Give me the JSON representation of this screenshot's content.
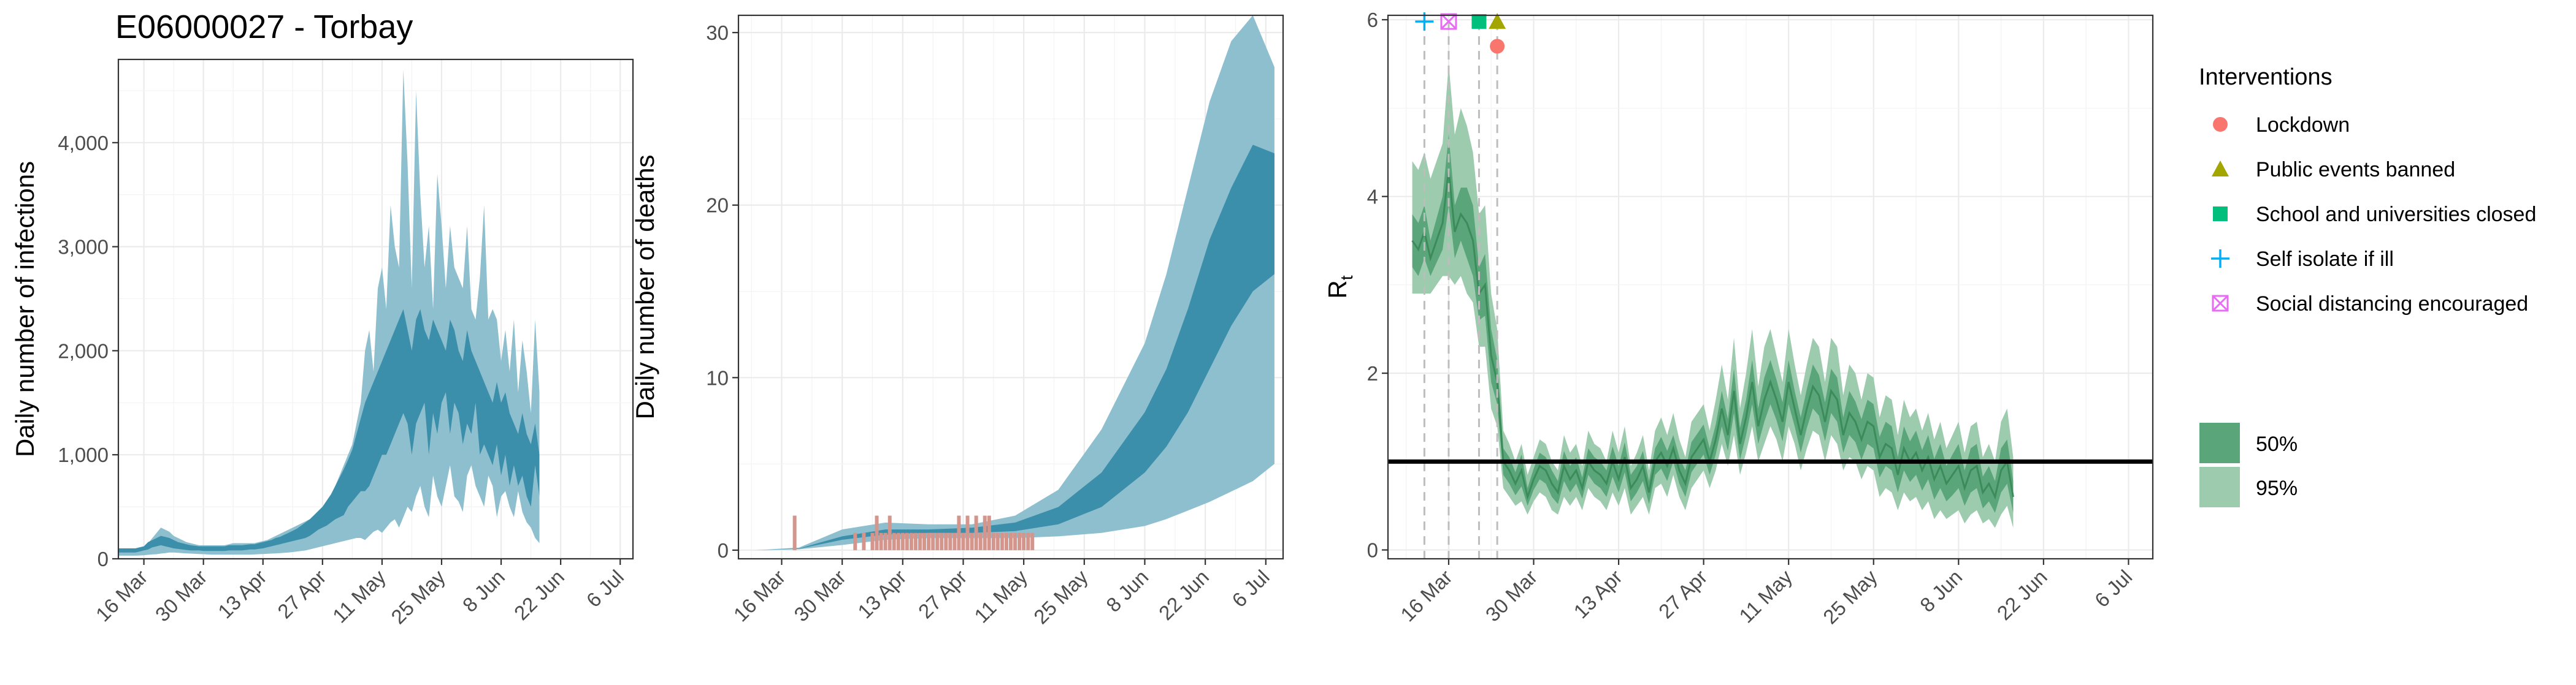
{
  "figure_title": "E06000027 - Torbay",
  "colors": {
    "infection_95": "#8ebfcf",
    "infection_50": "#3c8fab",
    "deaths_bar": "#d4958c",
    "rt_95": "#9ccbae",
    "rt_50": "#5aa57a",
    "rt_line": "#3b8c5a",
    "lockdown": "#f8766d",
    "public_events": "#a3a500",
    "school": "#00bf7d",
    "self_isolate": "#00b0f6",
    "social_distancing": "#e76bf3"
  },
  "chart_data": [
    {
      "id": "infections",
      "type": "area",
      "ylabel": "Daily number of infections",
      "ylim": [
        0,
        4800
      ],
      "yticks": [
        0,
        1000,
        2000,
        3000,
        4000
      ],
      "ytick_labels": [
        "0",
        "1,000",
        "2,000",
        "3,000",
        "4,000"
      ],
      "xlim": [
        "2020-03-10",
        "2020-07-09"
      ],
      "xticks": [
        "2020-03-16",
        "2020-03-30",
        "2020-04-13",
        "2020-04-27",
        "2020-05-11",
        "2020-05-25",
        "2020-06-08",
        "2020-06-22",
        "2020-07-06"
      ],
      "xtick_labels": [
        "16 Mar",
        "30 Mar",
        "13 Apr",
        "27 Apr",
        "11 May",
        "25 May",
        "8 Jun",
        "22 Jun",
        "6 Jul"
      ],
      "grid": true,
      "start_date": "2020-03-10",
      "band95_low": [
        30,
        30,
        30,
        30,
        30,
        32,
        34,
        38,
        42,
        44,
        50,
        55,
        60,
        60,
        58,
        55,
        52,
        50,
        48,
        46,
        44,
        42,
        40,
        40,
        40,
        40,
        40,
        40,
        40,
        40,
        40,
        40,
        42,
        44,
        46,
        48,
        50,
        52,
        55,
        58,
        60,
        65,
        70,
        75,
        80,
        90,
        100,
        110,
        120,
        130,
        140,
        150,
        160,
        170,
        180,
        190,
        200,
        200,
        180,
        220,
        260,
        280,
        250,
        300,
        350,
        380,
        300,
        400,
        500,
        450,
        600,
        700,
        500,
        400,
        800,
        600,
        500,
        700,
        900,
        600,
        550,
        450,
        800,
        900,
        700,
        600,
        500,
        800,
        700,
        400,
        600,
        650,
        500,
        400,
        650,
        450,
        350,
        300,
        200,
        150
      ],
      "band95_high": [
        80,
        80,
        80,
        80,
        80,
        90,
        100,
        150,
        200,
        250,
        300,
        280,
        260,
        220,
        200,
        180,
        160,
        150,
        140,
        130,
        130,
        130,
        130,
        130,
        130,
        130,
        140,
        150,
        150,
        150,
        150,
        150,
        150,
        160,
        170,
        180,
        200,
        220,
        240,
        260,
        280,
        300,
        320,
        340,
        360,
        380,
        400,
        450,
        500,
        550,
        600,
        700,
        800,
        900,
        1000,
        1100,
        1300,
        1500,
        2000,
        2200,
        1800,
        2600,
        2800,
        2400,
        3400,
        3000,
        2800,
        4700,
        3800,
        2600,
        4500,
        3500,
        2800,
        3200,
        2400,
        3700,
        3200,
        2600,
        3200,
        2800,
        2700,
        2600,
        3200,
        2400,
        2300,
        2700,
        3400,
        2300,
        2400,
        2300,
        1900,
        2200,
        1800,
        2300,
        1600,
        2100,
        1800,
        1400,
        2300,
        1600
      ],
      "band50_low": [
        60,
        60,
        60,
        60,
        60,
        70,
        80,
        90,
        110,
        120,
        130,
        120,
        110,
        100,
        95,
        90,
        85,
        80,
        80,
        80,
        75,
        75,
        75,
        75,
        75,
        75,
        80,
        80,
        80,
        80,
        85,
        90,
        90,
        95,
        100,
        110,
        120,
        130,
        140,
        150,
        160,
        170,
        180,
        190,
        200,
        220,
        250,
        280,
        300,
        320,
        350,
        380,
        400,
        420,
        500,
        550,
        600,
        650,
        650,
        700,
        800,
        900,
        1000,
        1000,
        1100,
        1200,
        1300,
        1400,
        1300,
        1000,
        1300,
        1400,
        1500,
        1000,
        1400,
        1200,
        1500,
        1600,
        1200,
        1500,
        1400,
        1100,
        1300,
        1200,
        1500,
        1000,
        1100,
        1000,
        900,
        1100,
        800,
        1000,
        700,
        900,
        700,
        800,
        600,
        500,
        900,
        600
      ],
      "band50_high": [
        100,
        100,
        100,
        100,
        100,
        110,
        120,
        160,
        180,
        200,
        220,
        210,
        200,
        180,
        160,
        150,
        140,
        130,
        125,
        120,
        120,
        120,
        120,
        120,
        120,
        120,
        130,
        130,
        130,
        130,
        135,
        140,
        140,
        150,
        160,
        170,
        180,
        200,
        210,
        230,
        250,
        270,
        290,
        320,
        350,
        380,
        420,
        460,
        500,
        560,
        620,
        700,
        780,
        860,
        950,
        1050,
        1200,
        1350,
        1500,
        1600,
        1700,
        1800,
        1900,
        2000,
        2100,
        2200,
        2300,
        2400,
        2200,
        2000,
        2300,
        2400,
        2200,
        2100,
        2300,
        2200,
        2100,
        2000,
        2300,
        2200,
        2000,
        1900,
        2200,
        2000,
        1900,
        1800,
        1700,
        1600,
        1500,
        1700,
        1500,
        1600,
        1400,
        1300,
        1200,
        1400,
        1200,
        1100,
        1300,
        1000
      ]
    },
    {
      "id": "deaths",
      "type": "area",
      "ylabel": "Daily number of deaths",
      "ylim": [
        -0.5,
        31
      ],
      "yticks": [
        0,
        10,
        20,
        30
      ],
      "ytick_labels": [
        "0",
        "10",
        "20",
        "30"
      ],
      "xlim": [
        "2020-03-06",
        "2020-07-10"
      ],
      "xticks": [
        "2020-03-16",
        "2020-03-30",
        "2020-04-13",
        "2020-04-27",
        "2020-05-11",
        "2020-05-25",
        "2020-06-08",
        "2020-06-22",
        "2020-07-06"
      ],
      "xtick_labels": [
        "16 Mar",
        "30 Mar",
        "13 Apr",
        "27 Apr",
        "11 May",
        "25 May",
        "8 Jun",
        "22 Jun",
        "6 Jul"
      ],
      "grid": true,
      "band_days": [
        "2020-03-10",
        "2020-03-20",
        "2020-03-30",
        "2020-04-09",
        "2020-04-19",
        "2020-04-29",
        "2020-05-09",
        "2020-05-19",
        "2020-05-29",
        "2020-06-08",
        "2020-06-13",
        "2020-06-18",
        "2020-06-23",
        "2020-06-28",
        "2020-07-03",
        "2020-07-08"
      ],
      "band95_low": [
        0,
        0.05,
        0.3,
        0.6,
        0.7,
        0.7,
        0.7,
        0.8,
        1.0,
        1.4,
        1.8,
        2.3,
        2.8,
        3.4,
        4.0,
        5.0
      ],
      "band95_high": [
        0,
        0.15,
        1.2,
        1.6,
        1.5,
        1.5,
        2.0,
        3.5,
        7.0,
        12.0,
        16.0,
        21.0,
        26.0,
        29.5,
        31.0,
        28.0
      ],
      "band50_low": [
        0,
        0.08,
        0.6,
        0.9,
        1.0,
        1.0,
        1.1,
        1.5,
        2.5,
        4.5,
        6.0,
        8.0,
        10.5,
        13.0,
        15.0,
        16.0
      ],
      "band50_high": [
        0,
        0.1,
        0.8,
        1.2,
        1.2,
        1.3,
        1.6,
        2.5,
        4.5,
        8.0,
        10.5,
        14.0,
        18.0,
        21.0,
        23.5,
        23.0
      ],
      "observed_days": [
        "2020-03-19",
        "2020-04-02",
        "2020-04-04",
        "2020-04-06",
        "2020-04-07",
        "2020-04-08",
        "2020-04-09",
        "2020-04-10",
        "2020-04-11",
        "2020-04-12",
        "2020-04-13",
        "2020-04-14",
        "2020-04-15",
        "2020-04-16",
        "2020-04-17",
        "2020-04-18",
        "2020-04-19",
        "2020-04-20",
        "2020-04-21",
        "2020-04-22",
        "2020-04-23",
        "2020-04-24",
        "2020-04-25",
        "2020-04-26",
        "2020-04-27",
        "2020-04-28",
        "2020-04-29",
        "2020-04-30",
        "2020-05-01",
        "2020-05-02",
        "2020-05-03",
        "2020-05-04",
        "2020-05-05",
        "2020-05-06",
        "2020-05-07",
        "2020-05-08",
        "2020-05-09",
        "2020-05-10",
        "2020-05-11",
        "2020-05-12",
        "2020-05-13"
      ],
      "observed_values": [
        2,
        1,
        1,
        1,
        2,
        1,
        1,
        2,
        1,
        1,
        1,
        1,
        1,
        1,
        1,
        1,
        1,
        1,
        1,
        1,
        1,
        1,
        1,
        2,
        1,
        2,
        1,
        2,
        1,
        2,
        2,
        1,
        1,
        1,
        1,
        1,
        1,
        1,
        1,
        1,
        1
      ]
    },
    {
      "id": "rt",
      "type": "area",
      "ylabel": "R",
      "ylabel_subscript": "t",
      "ylim": [
        -0.1,
        6.05
      ],
      "yticks": [
        0,
        2,
        4,
        6
      ],
      "ytick_labels": [
        "0",
        "2",
        "4",
        "6"
      ],
      "xlim": [
        "2020-03-06",
        "2020-07-10"
      ],
      "xticks": [
        "2020-03-16",
        "2020-03-30",
        "2020-04-13",
        "2020-04-27",
        "2020-05-11",
        "2020-05-25",
        "2020-06-08",
        "2020-06-22",
        "2020-07-06"
      ],
      "xtick_labels": [
        "16 Mar",
        "30 Mar",
        "13 Apr",
        "27 Apr",
        "11 May",
        "25 May",
        "8 Jun",
        "22 Jun",
        "6 Jul"
      ],
      "grid": true,
      "reference_line": 1,
      "start_date": "2020-03-10",
      "mean": [
        3.5,
        3.4,
        3.6,
        3.3,
        3.5,
        3.7,
        4.3,
        3.6,
        3.8,
        3.7,
        3.5,
        2.9,
        3.0,
        2.2,
        1.9,
        1.0,
        0.9,
        0.75,
        0.9,
        0.6,
        0.8,
        0.95,
        0.9,
        0.75,
        0.65,
        0.95,
        0.8,
        0.9,
        0.7,
        1.0,
        0.9,
        0.85,
        0.75,
        1.0,
        0.8,
        1.05,
        0.7,
        0.8,
        0.95,
        0.65,
        1.0,
        1.1,
        0.95,
        1.15,
        0.9,
        0.75,
        1.05,
        1.15,
        1.25,
        1.0,
        1.25,
        1.6,
        1.3,
        1.8,
        1.2,
        1.5,
        1.9,
        1.4,
        1.7,
        1.9,
        1.7,
        1.45,
        1.9,
        1.6,
        1.3,
        1.6,
        1.85,
        1.75,
        1.45,
        1.8,
        1.7,
        1.3,
        1.55,
        1.45,
        1.25,
        1.45,
        1.4,
        1.05,
        1.2,
        1.15,
        0.85,
        1.15,
        1.0,
        1.1,
        0.9,
        1.05,
        0.8,
        0.95,
        0.75,
        0.85,
        0.95,
        0.7,
        0.9,
        0.95,
        0.65,
        0.75,
        0.6,
        0.9,
        1.0,
        0.6
      ],
      "band95_low": [
        2.9,
        2.9,
        2.9,
        2.9,
        3.0,
        3.1,
        3.1,
        3.0,
        3.1,
        2.9,
        2.8,
        2.3,
        2.3,
        1.6,
        1.4,
        0.7,
        0.6,
        0.5,
        0.55,
        0.4,
        0.55,
        0.65,
        0.6,
        0.45,
        0.4,
        0.6,
        0.5,
        0.6,
        0.45,
        0.7,
        0.6,
        0.55,
        0.45,
        0.65,
        0.5,
        0.7,
        0.4,
        0.5,
        0.6,
        0.4,
        0.7,
        0.75,
        0.6,
        0.85,
        0.6,
        0.45,
        0.7,
        0.8,
        0.9,
        0.7,
        0.9,
        1.2,
        0.95,
        1.3,
        0.85,
        1.1,
        1.4,
        1.0,
        1.2,
        1.4,
        1.25,
        1.0,
        1.4,
        1.2,
        0.9,
        1.15,
        1.35,
        1.3,
        1.0,
        1.3,
        1.2,
        0.9,
        1.05,
        1.0,
        0.8,
        0.95,
        0.9,
        0.6,
        0.7,
        0.65,
        0.45,
        0.65,
        0.55,
        0.6,
        0.45,
        0.55,
        0.35,
        0.45,
        0.35,
        0.4,
        0.45,
        0.3,
        0.4,
        0.45,
        0.3,
        0.35,
        0.25,
        0.4,
        0.5,
        0.25
      ],
      "band95_high": [
        4.4,
        4.3,
        4.5,
        4.2,
        4.4,
        4.6,
        5.5,
        4.7,
        5.0,
        4.8,
        4.5,
        3.8,
        3.9,
        2.9,
        2.5,
        1.35,
        1.2,
        1.0,
        1.2,
        0.85,
        1.05,
        1.25,
        1.2,
        1.0,
        0.9,
        1.3,
        1.1,
        1.2,
        0.95,
        1.35,
        1.2,
        1.15,
        1.0,
        1.35,
        1.1,
        1.4,
        0.95,
        1.1,
        1.3,
        0.9,
        1.35,
        1.5,
        1.3,
        1.55,
        1.25,
        1.05,
        1.45,
        1.55,
        1.65,
        1.35,
        1.7,
        2.1,
        1.7,
        2.4,
        1.6,
        2.0,
        2.5,
        1.85,
        2.3,
        2.5,
        2.2,
        1.9,
        2.5,
        2.1,
        1.75,
        2.1,
        2.4,
        2.3,
        1.9,
        2.4,
        2.3,
        1.75,
        2.1,
        2.0,
        1.7,
        2.0,
        1.95,
        1.5,
        1.75,
        1.7,
        1.3,
        1.7,
        1.5,
        1.6,
        1.35,
        1.55,
        1.25,
        1.45,
        1.15,
        1.3,
        1.45,
        1.1,
        1.4,
        1.45,
        1.05,
        1.2,
        1.0,
        1.45,
        1.6,
        1.05
      ],
      "band50_low": [
        3.2,
        3.1,
        3.3,
        3.1,
        3.25,
        3.4,
        3.9,
        3.3,
        3.5,
        3.3,
        3.1,
        2.6,
        2.65,
        1.9,
        1.65,
        0.85,
        0.75,
        0.62,
        0.72,
        0.5,
        0.68,
        0.8,
        0.75,
        0.6,
        0.52,
        0.78,
        0.65,
        0.75,
        0.58,
        0.85,
        0.75,
        0.7,
        0.6,
        0.83,
        0.65,
        0.88,
        0.55,
        0.65,
        0.78,
        0.52,
        0.85,
        0.92,
        0.78,
        1.0,
        0.75,
        0.6,
        0.88,
        0.98,
        1.08,
        0.85,
        1.08,
        1.4,
        1.12,
        1.55,
        1.02,
        1.3,
        1.65,
        1.2,
        1.45,
        1.65,
        1.47,
        1.23,
        1.65,
        1.4,
        1.1,
        1.38,
        1.6,
        1.52,
        1.23,
        1.55,
        1.45,
        1.1,
        1.3,
        1.22,
        1.02,
        1.2,
        1.15,
        0.82,
        0.95,
        0.9,
        0.65,
        0.9,
        0.77,
        0.85,
        0.67,
        0.8,
        0.57,
        0.7,
        0.55,
        0.62,
        0.7,
        0.5,
        0.65,
        0.7,
        0.47,
        0.55,
        0.42,
        0.65,
        0.75,
        0.42
      ],
      "band50_high": [
        3.8,
        3.7,
        3.9,
        3.5,
        3.75,
        4.0,
        4.7,
        3.9,
        4.1,
        4.1,
        3.9,
        3.2,
        3.35,
        2.5,
        2.15,
        1.15,
        1.05,
        0.88,
        1.08,
        0.7,
        0.92,
        1.1,
        1.05,
        0.9,
        0.78,
        1.12,
        0.95,
        1.05,
        0.82,
        1.15,
        1.05,
        1.0,
        0.9,
        1.17,
        0.95,
        1.22,
        0.85,
        0.95,
        1.12,
        0.78,
        1.15,
        1.28,
        1.12,
        1.3,
        1.05,
        0.9,
        1.22,
        1.32,
        1.42,
        1.15,
        1.42,
        1.8,
        1.48,
        2.05,
        1.38,
        1.7,
        2.15,
        1.6,
        1.95,
        2.15,
        1.93,
        1.67,
        2.15,
        1.8,
        1.5,
        1.82,
        2.1,
        1.98,
        1.67,
        2.05,
        1.95,
        1.5,
        1.8,
        1.68,
        1.48,
        1.7,
        1.65,
        1.28,
        1.45,
        1.4,
        1.05,
        1.4,
        1.23,
        1.35,
        1.13,
        1.3,
        1.03,
        1.2,
        0.95,
        1.08,
        1.2,
        0.9,
        1.15,
        1.2,
        0.83,
        0.95,
        0.78,
        1.15,
        1.25,
        0.78
      ],
      "interventions": [
        {
          "key": "self_isolate",
          "date": "2020-03-12",
          "y": 5.98,
          "symbol": "plus"
        },
        {
          "key": "social_distancing",
          "date": "2020-03-16",
          "y": 5.98,
          "symbol": "boxx"
        },
        {
          "key": "school",
          "date": "2020-03-21",
          "y": 5.98,
          "symbol": "square"
        },
        {
          "key": "public_events",
          "date": "2020-03-24",
          "y": 5.98,
          "symbol": "triangle"
        },
        {
          "key": "lockdown",
          "date": "2020-03-24",
          "y": 5.7,
          "symbol": "circle"
        }
      ]
    }
  ],
  "legend": {
    "title": "Interventions",
    "items": [
      {
        "key": "lockdown",
        "label": "Lockdown",
        "symbol": "circle"
      },
      {
        "key": "public_events",
        "label": "Public events banned",
        "symbol": "triangle"
      },
      {
        "key": "school",
        "label": "School and universities closed",
        "symbol": "square"
      },
      {
        "key": "self_isolate",
        "label": "Self isolate if ill",
        "symbol": "plus"
      },
      {
        "key": "social_distancing",
        "label": "Social distancing encouraged",
        "symbol": "boxx"
      }
    ],
    "interval_items": [
      {
        "label": "50%",
        "color_key": "rt_50"
      },
      {
        "label": "95%",
        "color_key": "rt_95"
      }
    ]
  }
}
